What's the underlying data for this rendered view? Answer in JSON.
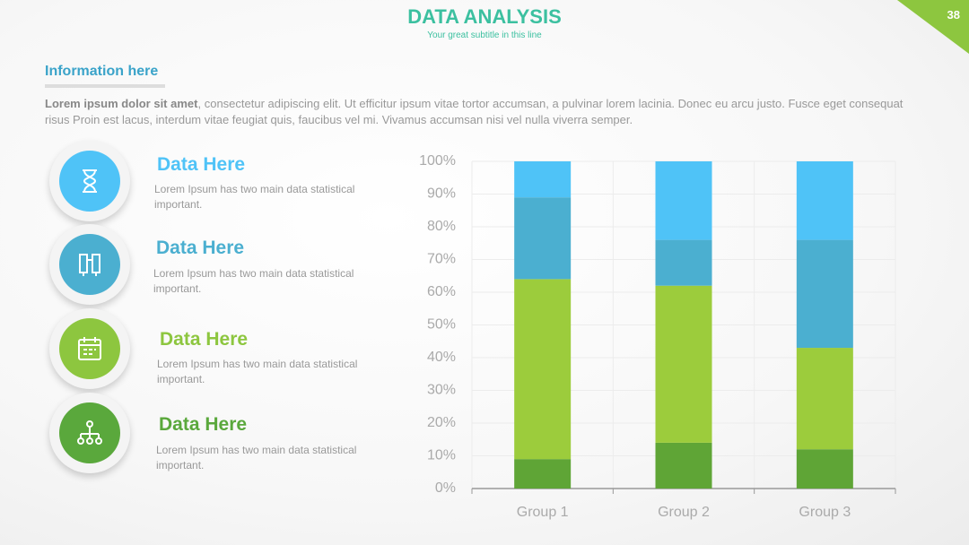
{
  "header": {
    "title": "DATA ANALYSIS",
    "subtitle": "Your great subtitle in this line",
    "page_number": "38"
  },
  "section": {
    "heading": "Information here",
    "lead_bold": "Lorem ipsum dolor sit amet",
    "lead_text": ", consectetur adipiscing elit. Ut efficitur ipsum vitae tortor accumsan, a pulvinar lorem lacinia. Donec eu arcu justo. Fusce eget consequat risus Proin est lacus, interdum vitae feugiat quis, faucibus vel mi.  Vivamus accumsan nisi vel nulla viverra semper."
  },
  "items": [
    {
      "label": "Data Here",
      "text": "Lorem Ipsum has two main data statistical important."
    },
    {
      "label": "Data Here",
      "text": "Lorem Ipsum has two main data statistical important."
    },
    {
      "label": "Data Here",
      "text": "Lorem Ipsum has two main data statistical important."
    },
    {
      "label": "Data Here",
      "text": "Lorem Ipsum has two main data statistical important."
    }
  ],
  "chart_data": {
    "type": "stacked_bar",
    "categories": [
      "Group 1",
      "Group 2",
      "Group 3"
    ],
    "series": [
      {
        "color": "#5fa536",
        "values": [
          9,
          14,
          12
        ]
      },
      {
        "color": "#9ccc3c",
        "values": [
          55,
          48,
          31
        ]
      },
      {
        "color": "#4bafd0",
        "values": [
          25,
          14,
          33
        ]
      },
      {
        "color": "#4fc3f7",
        "values": [
          11,
          24,
          24
        ]
      }
    ],
    "ylim": [
      0,
      100
    ],
    "yticks": [
      {
        "value": 0,
        "label": "0%"
      },
      {
        "value": 10,
        "label": "10%"
      },
      {
        "value": 20,
        "label": "20%"
      },
      {
        "value": 30,
        "label": "30%"
      },
      {
        "value": 40,
        "label": "40%"
      },
      {
        "value": 50,
        "label": "50%"
      },
      {
        "value": 60,
        "label": "60%"
      },
      {
        "value": 70,
        "label": "70%"
      },
      {
        "value": 80,
        "label": "80%"
      },
      {
        "value": 90,
        "label": "90%"
      },
      {
        "value": 100,
        "label": "100%"
      }
    ],
    "grid": true
  }
}
